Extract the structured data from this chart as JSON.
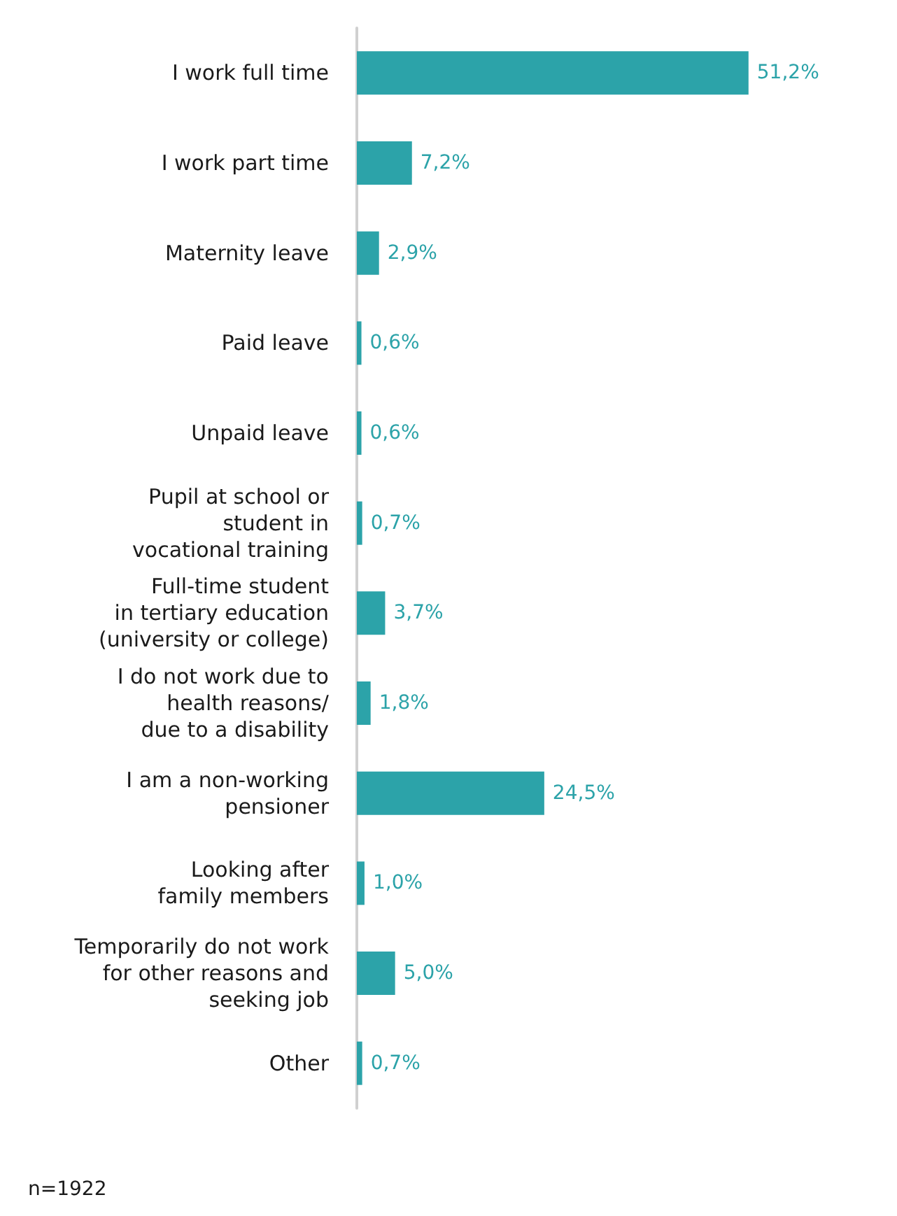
{
  "chart_data": {
    "type": "bar",
    "orientation": "horizontal",
    "categories": [
      "I work full time",
      "I work part time",
      "Maternity leave",
      "Paid leave",
      "Unpaid leave",
      "Pupil at school or\nstudent in\nvocational training",
      "Full-time student\nin tertiary education\n(university or college)",
      "I do not work due to\nhealth reasons/\ndue to a disability",
      "I am a non-working\npensioner",
      "Looking after\nfamily members",
      "Temporarily do not work\nfor other reasons and\nseeking job",
      "Other"
    ],
    "values": [
      51.2,
      7.2,
      2.9,
      0.6,
      0.6,
      0.7,
      3.7,
      1.8,
      24.5,
      1.0,
      5.0,
      0.7
    ],
    "value_labels": [
      "51,2%",
      "7,2%",
      "2,9%",
      "0,6%",
      "0,6%",
      "0,7%",
      "3,7%",
      "1,8%",
      "24,5%",
      "1,0%",
      "5,0%",
      "0,7%"
    ],
    "color": "#2ca3a9",
    "annotations": [
      "n=1922"
    ]
  }
}
